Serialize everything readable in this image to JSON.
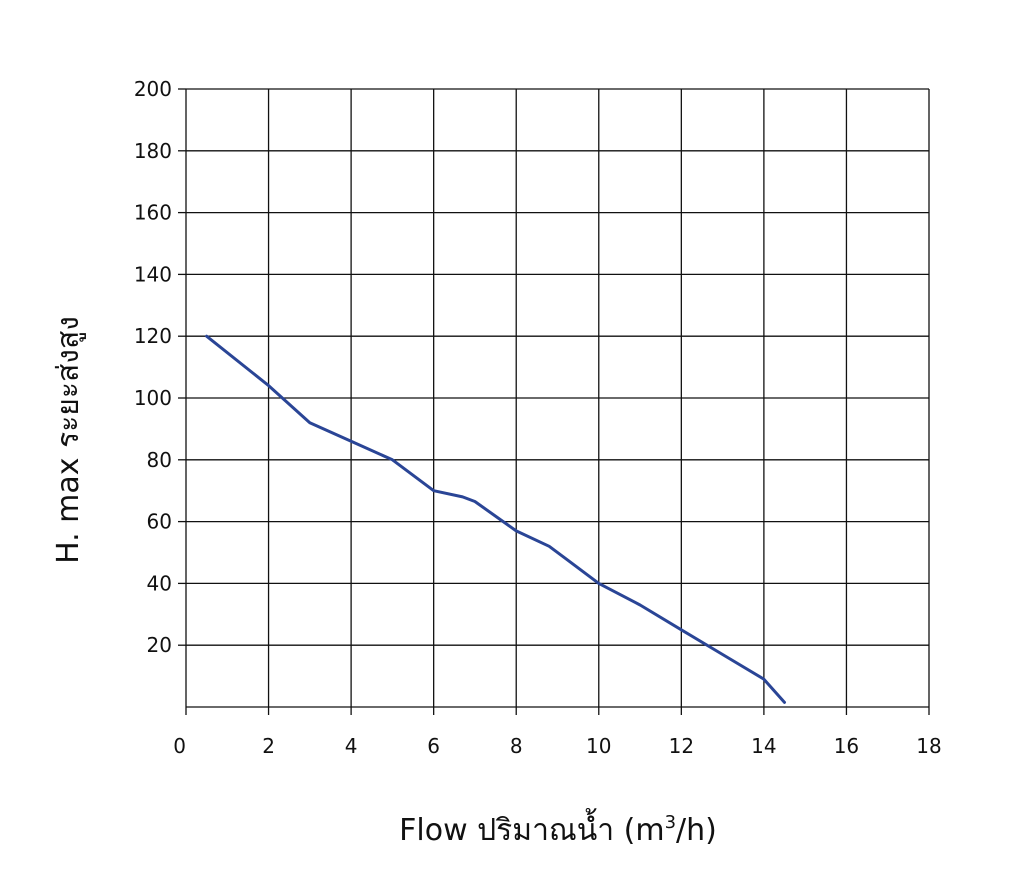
{
  "chart_data": {
    "type": "line",
    "title": "",
    "xlabel": {
      "main": "Flow  ปริมาณน้ำ (m",
      "sup": "3",
      "tail": "/h)"
    },
    "ylabel": "H. max  ระยะส่งสูง",
    "xlim": [
      0,
      18
    ],
    "ylim": [
      0,
      200
    ],
    "xticks": [
      "0",
      "2",
      "4",
      "6",
      "8",
      "10",
      "12",
      "14",
      "16",
      "18"
    ],
    "yticks": [
      "20",
      "40",
      "60",
      "80",
      "100",
      "120",
      "140",
      "160",
      "180",
      "200"
    ],
    "grid": true,
    "series": [
      {
        "x": [
          0.5,
          2.0,
          3.0,
          4.0,
          5.0,
          6.0,
          6.7,
          7.0,
          8.0,
          8.8,
          9.2,
          10.0,
          11.0,
          12.0,
          13.0,
          14.0,
          14.5
        ],
        "y": [
          120,
          104,
          92,
          86,
          80,
          70,
          68,
          66.5,
          57,
          52,
          48,
          40,
          33,
          25,
          17,
          9,
          1.5
        ]
      }
    ],
    "colors": {
      "line": "#2a4596",
      "grid": "#111111",
      "text": "#111111"
    }
  }
}
